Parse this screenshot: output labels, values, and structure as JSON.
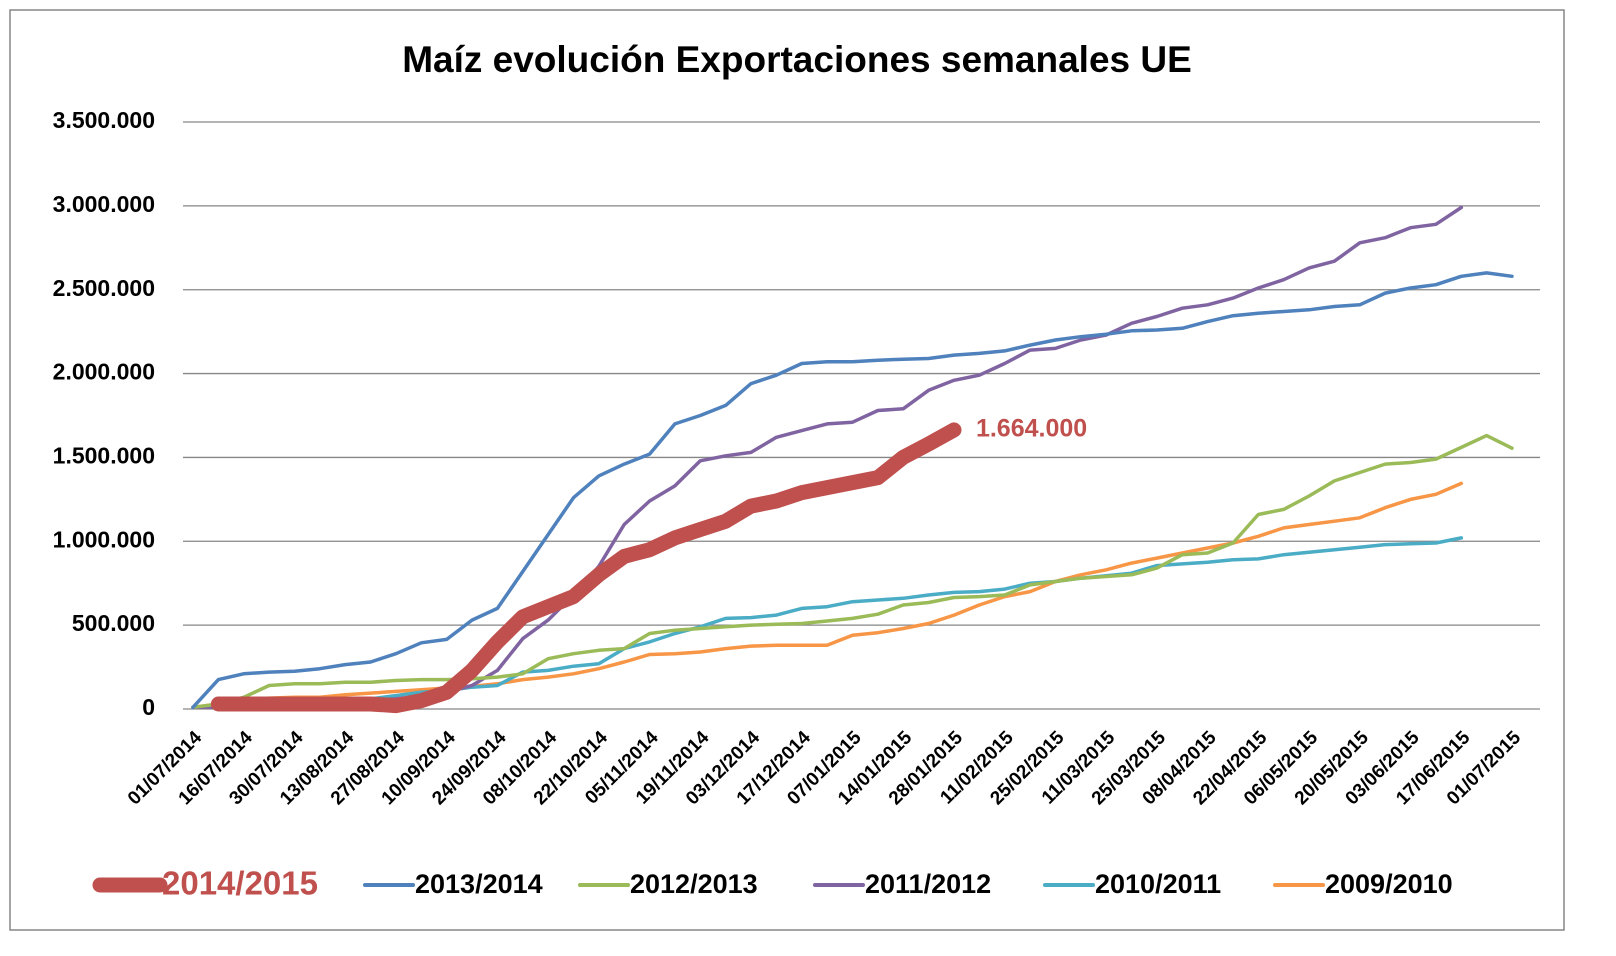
{
  "chart_data": {
    "type": "line",
    "title": "Maíz evolución Exportaciones semanales UE",
    "categories": [
      "01/07/2014",
      null,
      "16/07/2014",
      null,
      "30/07/2014",
      null,
      "13/08/2014",
      null,
      "27/08/2014",
      null,
      "10/09/2014",
      null,
      "24/09/2014",
      null,
      "08/10/2014",
      null,
      "22/10/2014",
      null,
      "05/11/2014",
      null,
      "19/11/2014",
      null,
      "03/12/2014",
      null,
      "17/12/2014",
      null,
      "07/01/2015",
      null,
      "14/01/2015",
      null,
      "28/01/2015",
      null,
      "11/02/2015",
      null,
      "25/02/2015",
      null,
      "11/03/2015",
      null,
      "25/03/2015",
      null,
      "08/04/2015",
      null,
      "22/04/2015",
      null,
      "06/05/2015",
      null,
      "20/05/2015",
      null,
      "03/06/2015",
      null,
      "17/06/2015",
      null,
      "01/07/2015"
    ],
    "ylim": [
      0,
      3500000
    ],
    "yticks": [
      0,
      {
        "value": 500000,
        "label": "500.000"
      },
      {
        "value": 1000000,
        "label": "1.000.000"
      },
      {
        "value": 1500000,
        "label": "1.500.000"
      },
      {
        "value": 2000000,
        "label": "2.000.000"
      },
      {
        "value": 2500000,
        "label": "2.500.000"
      },
      {
        "value": 3000000,
        "label": "3.000.000"
      },
      {
        "value": 3500000,
        "label": "3.500.000"
      }
    ],
    "grid": true,
    "legend": "bottom",
    "series": [
      {
        "name": "2014/2015",
        "color": "#c0504d",
        "values": [
          null,
          30000,
          30000,
          30000,
          30000,
          30000,
          30000,
          30000,
          20000,
          50000,
          100000,
          230000,
          400000,
          550000,
          610000,
          670000,
          800000,
          910000,
          950000,
          1020000,
          1070000,
          1120000,
          1210000,
          1240000,
          1290000,
          1320000,
          1350000,
          1380000,
          1500000,
          1580000,
          1664000,
          null,
          null,
          null,
          null,
          null,
          null,
          null,
          null,
          null,
          null,
          null,
          null,
          null,
          null,
          null,
          null,
          null,
          null,
          null,
          null,
          null,
          null
        ],
        "value_labels": [
          null,
          null,
          null,
          null,
          null,
          null,
          null,
          null,
          null,
          null,
          null,
          null,
          null,
          null,
          null,
          null,
          null,
          null,
          null,
          null,
          null,
          null,
          null,
          null,
          null,
          null,
          null,
          null,
          null,
          null,
          "1.664.000",
          null,
          null,
          null,
          null,
          null,
          null,
          null,
          null,
          null,
          null,
          null,
          null,
          null,
          null,
          null,
          null,
          null,
          null,
          null,
          null,
          null,
          null
        ]
      },
      {
        "name": "2013/2014",
        "color": "#4f81bd",
        "values": [
          10000,
          175000,
          210000,
          220000,
          225000,
          240000,
          265000,
          280000,
          330000,
          395000,
          415000,
          530000,
          600000,
          820000,
          1040000,
          1260000,
          1390000,
          1460000,
          1520000,
          1700000,
          1750000,
          1810000,
          1940000,
          1990000,
          2060000,
          2070000,
          2070000,
          2080000,
          2085000,
          2090000,
          2110000,
          2120000,
          2135000,
          2170000,
          2200000,
          2220000,
          2235000,
          2255000,
          2260000,
          2270000,
          2310000,
          2345000,
          2360000,
          2370000,
          2380000,
          2400000,
          2410000,
          2480000,
          2510000,
          2530000,
          2580000,
          2600000,
          2580000
        ]
      },
      {
        "name": "2012/2013",
        "color": "#9bbb59",
        "values": [
          10000,
          30000,
          70000,
          140000,
          150000,
          150000,
          160000,
          160000,
          170000,
          175000,
          175000,
          180000,
          190000,
          210000,
          300000,
          330000,
          350000,
          360000,
          450000,
          470000,
          480000,
          490000,
          500000,
          505000,
          510000,
          525000,
          540000,
          565000,
          620000,
          635000,
          665000,
          670000,
          680000,
          740000,
          760000,
          780000,
          790000,
          800000,
          840000,
          920000,
          930000,
          990000,
          1160000,
          1190000,
          1270000,
          1360000,
          1410000,
          1460000,
          1470000,
          1490000,
          1560000,
          1630000,
          1555000
        ]
      },
      {
        "name": "2011/2012",
        "color": "#8064a2",
        "values": [
          10000,
          10000,
          10000,
          15000,
          20000,
          25000,
          40000,
          50000,
          60000,
          75000,
          100000,
          140000,
          230000,
          420000,
          530000,
          680000,
          850000,
          1100000,
          1240000,
          1330000,
          1480000,
          1510000,
          1530000,
          1620000,
          1660000,
          1700000,
          1710000,
          1780000,
          1790000,
          1900000,
          1960000,
          1990000,
          2060000,
          2140000,
          2150000,
          2200000,
          2230000,
          2300000,
          2340000,
          2390000,
          2410000,
          2450000,
          2510000,
          2560000,
          2630000,
          2670000,
          2780000,
          2810000,
          2870000,
          2890000,
          2990000,
          null,
          null
        ]
      },
      {
        "name": "2010/2011",
        "color": "#4bacc6",
        "values": [
          10000,
          20000,
          30000,
          30000,
          30000,
          35000,
          35000,
          60000,
          80000,
          100000,
          110000,
          130000,
          140000,
          220000,
          230000,
          255000,
          270000,
          360000,
          400000,
          450000,
          490000,
          540000,
          545000,
          560000,
          600000,
          610000,
          640000,
          650000,
          660000,
          680000,
          695000,
          700000,
          715000,
          750000,
          760000,
          780000,
          795000,
          810000,
          855000,
          865000,
          875000,
          890000,
          895000,
          920000,
          935000,
          950000,
          965000,
          980000,
          985000,
          990000,
          1020000,
          null,
          null
        ]
      },
      {
        "name": "2009/2010",
        "color": "#f79646",
        "values": [
          10000,
          30000,
          60000,
          65000,
          70000,
          70000,
          85000,
          95000,
          105000,
          115000,
          125000,
          135000,
          150000,
          175000,
          190000,
          210000,
          240000,
          280000,
          325000,
          330000,
          340000,
          360000,
          375000,
          380000,
          380000,
          380000,
          440000,
          455000,
          480000,
          510000,
          560000,
          620000,
          670000,
          700000,
          760000,
          800000,
          830000,
          870000,
          900000,
          930000,
          960000,
          990000,
          1030000,
          1080000,
          1100000,
          1120000,
          1140000,
          1200000,
          1250000,
          1280000,
          1345000,
          null,
          null
        ]
      }
    ]
  }
}
